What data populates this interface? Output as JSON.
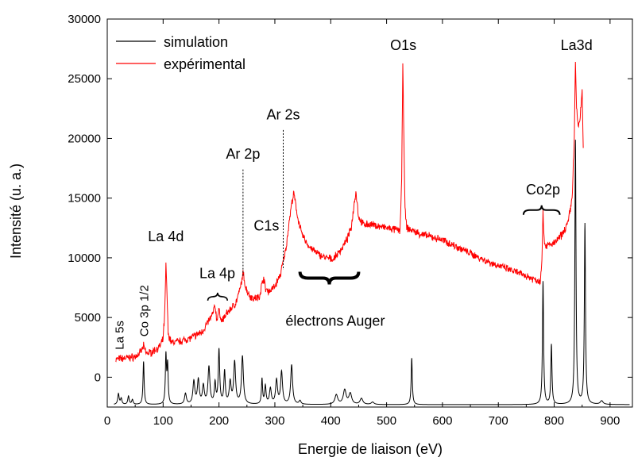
{
  "chart_data": {
    "type": "line",
    "xlabel": "Energie de liaison (eV)",
    "ylabel": "Intensité (u. a.)",
    "xlim": [
      0,
      940
    ],
    "ylim": [
      -2500,
      30000
    ],
    "xticks": [
      0,
      100,
      200,
      300,
      400,
      500,
      600,
      700,
      800,
      900
    ],
    "yticks": [
      0,
      5000,
      10000,
      15000,
      20000,
      25000,
      30000
    ],
    "grid": false,
    "legend_position": "top-left",
    "series": [
      {
        "name": "simulation",
        "color": "#000000",
        "baseline": -2300,
        "peaks": [
          {
            "x": 20,
            "h": 900,
            "w": 1.5
          },
          {
            "x": 25,
            "h": 500,
            "w": 1.5
          },
          {
            "x": 38,
            "h": 700,
            "w": 1.5
          },
          {
            "x": 45,
            "h": 400,
            "w": 1.5
          },
          {
            "x": 65,
            "h": 3600,
            "w": 1.2
          },
          {
            "x": 105,
            "h": 4000,
            "w": 1.2
          },
          {
            "x": 108,
            "h": 3200,
            "w": 1.2
          },
          {
            "x": 140,
            "h": 900,
            "w": 2
          },
          {
            "x": 155,
            "h": 1900,
            "w": 2
          },
          {
            "x": 163,
            "h": 2000,
            "w": 2
          },
          {
            "x": 172,
            "h": 1500,
            "w": 2
          },
          {
            "x": 182,
            "h": 3100,
            "w": 2
          },
          {
            "x": 193,
            "h": 1700,
            "w": 1.5
          },
          {
            "x": 200,
            "h": 4500,
            "w": 1.5
          },
          {
            "x": 210,
            "h": 2700,
            "w": 1.5
          },
          {
            "x": 220,
            "h": 1800,
            "w": 2
          },
          {
            "x": 228,
            "h": 3500,
            "w": 2
          },
          {
            "x": 242,
            "h": 4000,
            "w": 2
          },
          {
            "x": 277,
            "h": 2100,
            "w": 1.2
          },
          {
            "x": 283,
            "h": 1500,
            "w": 1.5
          },
          {
            "x": 292,
            "h": 1300,
            "w": 2
          },
          {
            "x": 303,
            "h": 2000,
            "w": 2
          },
          {
            "x": 312,
            "h": 2700,
            "w": 2
          },
          {
            "x": 330,
            "h": 3300,
            "w": 2
          },
          {
            "x": 345,
            "h": 300,
            "w": 2
          },
          {
            "x": 410,
            "h": 800,
            "w": 3
          },
          {
            "x": 425,
            "h": 1200,
            "w": 3
          },
          {
            "x": 435,
            "h": 900,
            "w": 3
          },
          {
            "x": 455,
            "h": 500,
            "w": 3
          },
          {
            "x": 475,
            "h": 200,
            "w": 3
          },
          {
            "x": 545,
            "h": 3900,
            "w": 1.2
          },
          {
            "x": 780,
            "h": 10300,
            "w": 1.2
          },
          {
            "x": 795,
            "h": 5000,
            "w": 1.2
          },
          {
            "x": 838,
            "h": 22100,
            "w": 1.2
          },
          {
            "x": 855,
            "h": 15100,
            "w": 1.2
          },
          {
            "x": 885,
            "h": 300,
            "w": 3
          }
        ]
      },
      {
        "name": "expérimental",
        "color": "#ff0000",
        "noise": 250,
        "points": [
          [
            15,
            1500
          ],
          [
            50,
            1700
          ],
          [
            60,
            2100
          ],
          [
            65,
            2600
          ],
          [
            70,
            2000
          ],
          [
            80,
            2100
          ],
          [
            95,
            2600
          ],
          [
            100,
            3200
          ],
          [
            103,
            5500
          ],
          [
            105,
            9400
          ],
          [
            107,
            7000
          ],
          [
            109,
            3600
          ],
          [
            115,
            2900
          ],
          [
            130,
            3000
          ],
          [
            150,
            3300
          ],
          [
            170,
            3800
          ],
          [
            180,
            4600
          ],
          [
            188,
            5200
          ],
          [
            193,
            6000
          ],
          [
            196,
            4800
          ],
          [
            200,
            5600
          ],
          [
            205,
            4700
          ],
          [
            215,
            5400
          ],
          [
            230,
            6200
          ],
          [
            238,
            7400
          ],
          [
            243,
            8700
          ],
          [
            248,
            7500
          ],
          [
            255,
            6800
          ],
          [
            262,
            6600
          ],
          [
            272,
            6700
          ],
          [
            276,
            7600
          ],
          [
            280,
            8400
          ],
          [
            283,
            7400
          ],
          [
            290,
            7200
          ],
          [
            300,
            7600
          ],
          [
            310,
            8600
          ],
          [
            320,
            10800
          ],
          [
            325,
            12800
          ],
          [
            330,
            14500
          ],
          [
            334,
            15400
          ],
          [
            340,
            13600
          ],
          [
            348,
            12000
          ],
          [
            360,
            11000
          ],
          [
            375,
            10400
          ],
          [
            390,
            10000
          ],
          [
            405,
            9900
          ],
          [
            420,
            10800
          ],
          [
            430,
            11600
          ],
          [
            437,
            12600
          ],
          [
            441,
            14200
          ],
          [
            445,
            15600
          ],
          [
            450,
            13400
          ],
          [
            458,
            12800
          ],
          [
            470,
            12800
          ],
          [
            490,
            12600
          ],
          [
            510,
            12400
          ],
          [
            524,
            12300
          ],
          [
            527,
            16500
          ],
          [
            529,
            26100
          ],
          [
            531,
            20000
          ],
          [
            533,
            14000
          ],
          [
            536,
            12500
          ],
          [
            560,
            12000
          ],
          [
            600,
            11500
          ],
          [
            640,
            10600
          ],
          [
            680,
            9700
          ],
          [
            720,
            9000
          ],
          [
            760,
            8300
          ],
          [
            775,
            8000
          ],
          [
            778,
            10000
          ],
          [
            780,
            13800
          ],
          [
            782,
            11500
          ],
          [
            785,
            11000
          ],
          [
            800,
            11200
          ],
          [
            815,
            12000
          ],
          [
            825,
            13000
          ],
          [
            832,
            15000
          ],
          [
            836,
            20000
          ],
          [
            838,
            26500
          ],
          [
            840,
            22500
          ],
          [
            843,
            21000
          ],
          [
            846,
            21500
          ],
          [
            848,
            22800
          ],
          [
            850,
            24000
          ],
          [
            852,
            19200
          ]
        ]
      }
    ],
    "annotations": [
      {
        "text": "La 5s",
        "x": 22,
        "y": 2300,
        "rotate": true
      },
      {
        "text": "Co 3p 1/2",
        "x": 66,
        "y": 3400,
        "rotate": true
      },
      {
        "text": "La 4d",
        "x": 105,
        "y": 11400
      },
      {
        "text": "La 4p",
        "x": 197,
        "y": 8300
      },
      {
        "text": "Ar 2p",
        "x": 243,
        "y": 18300
      },
      {
        "text": "Ar 2s",
        "x": 315,
        "y": 21600
      },
      {
        "text": "C1s",
        "x": 285,
        "y": 12300
      },
      {
        "text": "électrons Auger",
        "x": 408,
        "y": 4300
      },
      {
        "text": "O1s",
        "x": 530,
        "y": 27400
      },
      {
        "text": "Co2p",
        "x": 780,
        "y": 15300
      },
      {
        "text": "La3d",
        "x": 840,
        "y": 27400
      }
    ]
  }
}
